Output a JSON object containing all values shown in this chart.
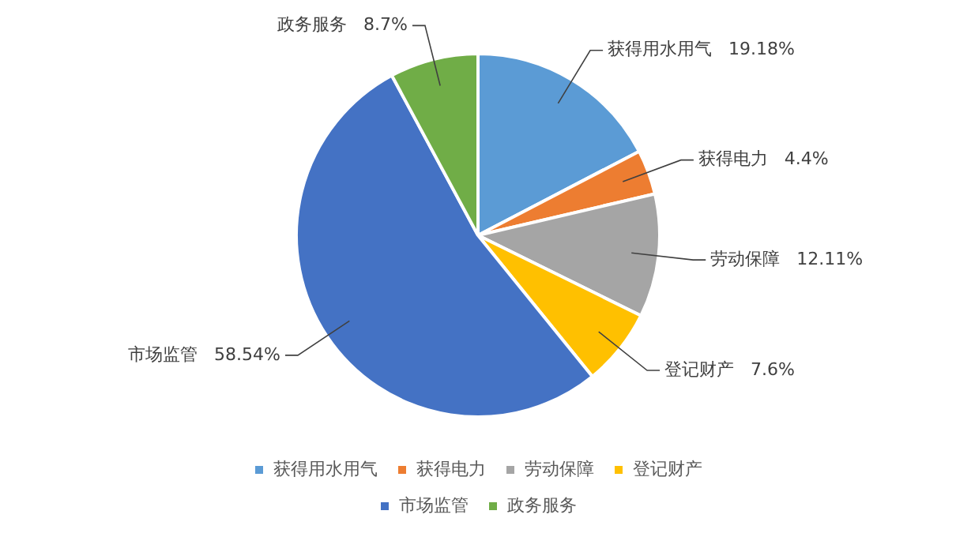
{
  "chart_data": {
    "type": "pie",
    "categories": [
      "获得用水用气",
      "获得电力",
      "劳动保障",
      "登记财产",
      "市场监管",
      "政务服务"
    ],
    "values": [
      19.18,
      4.4,
      12.11,
      7.6,
      58.54,
      8.7
    ],
    "value_labels": [
      "19.18%",
      "4.4%",
      "12.11%",
      "7.6%",
      "58.54%",
      "8.7%"
    ],
    "colors": [
      "#5b9bd5",
      "#ed7d31",
      "#a5a5a5",
      "#ffc000",
      "#4472c4",
      "#70ad47"
    ],
    "legend": "bottom"
  }
}
